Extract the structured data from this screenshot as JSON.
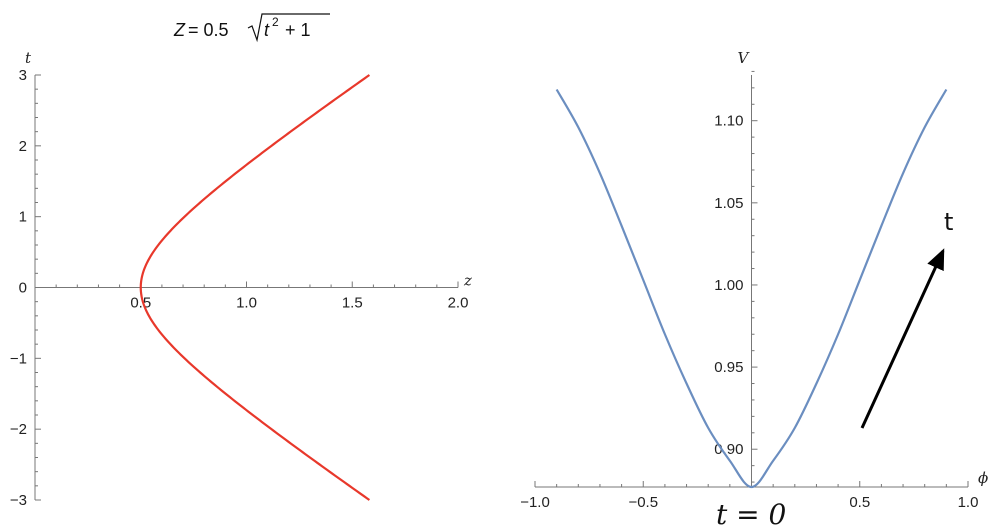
{
  "chart_data": [
    {
      "type": "line",
      "title_parts": {
        "lhs": "Z",
        "eq": "= 0.5",
        "rad_var": "t",
        "rad_exp": "2",
        "rad_rest": "+ 1"
      },
      "xlabel": "z",
      "ylabel": "t",
      "xlim": [
        0,
        2.0
      ],
      "ylim": [
        -3,
        3
      ],
      "xticks": [
        0.5,
        1.0,
        1.5,
        2.0
      ],
      "xtick_labels": [
        "0.5",
        "1.0",
        "1.5",
        "2.0"
      ],
      "yticks": [
        -3,
        -2,
        -1,
        0,
        1,
        2,
        3
      ],
      "ytick_labels": [
        "−3",
        "−2",
        "−1",
        "0",
        "1",
        "2",
        "3"
      ],
      "color": "#e8382b",
      "series": [
        {
          "x": [
            1.581,
            1.498,
            1.414,
            1.332,
            1.25,
            1.17,
            1.09,
            1.012,
            0.9354,
            0.8602,
            0.7906,
            0.7263,
            0.6726,
            0.6311,
            0.6021,
            0.5825,
            0.5701,
            0.559,
            0.5448,
            0.5313,
            0.5178,
            0.505,
            0.5,
            0.505,
            0.5178,
            0.5313,
            0.5448,
            0.559,
            0.5701,
            0.5825,
            0.6021,
            0.6311,
            0.6726,
            0.7263,
            0.7906,
            0.8602,
            0.9354,
            1.012,
            1.09,
            1.17,
            1.25,
            1.332,
            1.414,
            1.498,
            1.581
          ],
          "y": [
            -3.0,
            -2.8,
            -2.6,
            -2.4,
            -2.2,
            -2.0,
            -1.8,
            -1.6,
            -1.4,
            -1.2,
            -1.0,
            -0.8,
            -0.6,
            -0.4,
            -0.2,
            -0.1,
            0.0,
            0.0,
            0.0,
            0.0,
            0.0,
            0.0,
            0.0,
            0.0,
            0.0,
            0.0,
            0.0,
            0.0,
            0.0,
            0.1,
            0.2,
            0.4,
            0.6,
            0.8,
            1.0,
            1.2,
            1.4,
            1.6,
            1.8,
            2.0,
            2.2,
            2.4,
            2.6,
            2.8,
            3.0
          ]
        }
      ]
    },
    {
      "type": "line",
      "xlabel": "ϕ",
      "ylabel": "V",
      "xlim": [
        -1.0,
        1.0
      ],
      "ylim": [
        0.877,
        1.14
      ],
      "xticks": [
        -1.0,
        -0.5,
        0.5,
        1.0
      ],
      "xtick_labels": [
        "−1.0",
        "−0.5",
        "0.5",
        "1.0"
      ],
      "yticks": [
        0.9,
        0.95,
        1.0,
        1.05,
        1.1
      ],
      "ytick_labels": [
        "0.90",
        "0.95",
        "1.00",
        "1.05",
        "1.10"
      ],
      "color": "#6b8ec0",
      "series": [
        {
          "x": [
            -0.9,
            -0.8,
            -0.7,
            -0.6,
            -0.5,
            -0.4,
            -0.3,
            -0.2,
            -0.1,
            0.0,
            0.1,
            0.2,
            0.3,
            0.4,
            0.5,
            0.6,
            0.7,
            0.8,
            0.9
          ],
          "y": [
            1.119,
            1.096,
            1.068,
            1.036,
            1.003,
            0.97,
            0.94,
            0.913,
            0.893,
            0.877,
            0.893,
            0.913,
            0.94,
            0.97,
            1.003,
            1.036,
            1.068,
            1.096,
            1.119
          ]
        }
      ],
      "annotations": {
        "arrow_label": "t",
        "start_label": "t = 0",
        "arrow_color": "#000000"
      }
    }
  ]
}
